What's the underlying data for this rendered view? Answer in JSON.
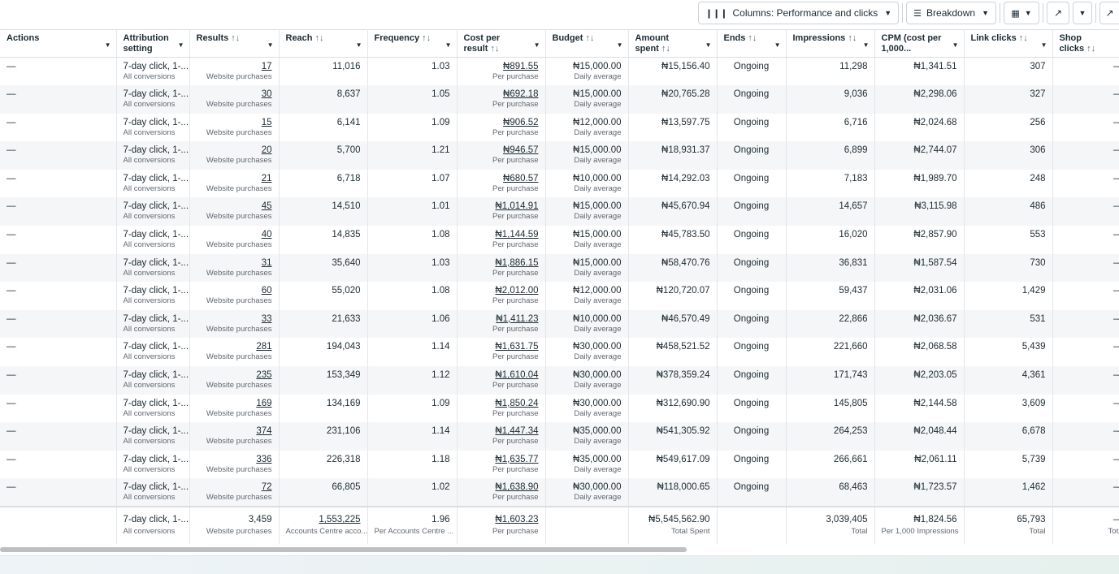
{
  "toolbar": {
    "columns_label": "Columns: Performance and clicks",
    "breakdown_label": "Breakdown"
  },
  "headers": [
    {
      "label": "Actions",
      "sort": false
    },
    {
      "label": "Attribution setting",
      "sort": false
    },
    {
      "label": "Results",
      "sort": true
    },
    {
      "label": "Reach",
      "sort": true
    },
    {
      "label": "Frequency",
      "sort": true
    },
    {
      "label": "Cost per result",
      "sort": true
    },
    {
      "label": "Budget",
      "sort": true
    },
    {
      "label": "Amount spent",
      "sort": true
    },
    {
      "label": "Ends",
      "sort": true
    },
    {
      "label": "Impressions",
      "sort": true
    },
    {
      "label": "CPM (cost per 1,000...",
      "sort": false
    },
    {
      "label": "Link clicks",
      "sort": true
    },
    {
      "label": "Shop clicks",
      "sort": true
    }
  ],
  "sort_glyph": "↑↓",
  "rows": [
    {
      "actions": "—",
      "attr": "7-day click, 1-...",
      "attr_sub": "All conversions",
      "results": "17",
      "results_sub": "Website purchases",
      "reach": "11,016",
      "freq": "1.03",
      "cpr": "₦891.55",
      "cpr_sub": "Per purchase",
      "budget": "₦15,000.00",
      "budget_sub": "Daily average",
      "spent": "₦15,156.40",
      "ends": "Ongoing",
      "impr": "11,298",
      "cpm": "₦1,341.51",
      "link": "307",
      "shop": "—"
    },
    {
      "actions": "—",
      "attr": "7-day click, 1-...",
      "attr_sub": "All conversions",
      "results": "30",
      "results_sub": "Website purchases",
      "reach": "8,637",
      "freq": "1.05",
      "cpr": "₦692.18",
      "cpr_sub": "Per purchase",
      "budget": "₦15,000.00",
      "budget_sub": "Daily average",
      "spent": "₦20,765.28",
      "ends": "Ongoing",
      "impr": "9,036",
      "cpm": "₦2,298.06",
      "link": "327",
      "shop": "—"
    },
    {
      "actions": "—",
      "attr": "7-day click, 1-...",
      "attr_sub": "All conversions",
      "results": "15",
      "results_sub": "Website purchases",
      "reach": "6,141",
      "freq": "1.09",
      "cpr": "₦906.52",
      "cpr_sub": "Per purchase",
      "budget": "₦12,000.00",
      "budget_sub": "Daily average",
      "spent": "₦13,597.75",
      "ends": "Ongoing",
      "impr": "6,716",
      "cpm": "₦2,024.68",
      "link": "256",
      "shop": "—"
    },
    {
      "actions": "—",
      "attr": "7-day click, 1-...",
      "attr_sub": "All conversions",
      "results": "20",
      "results_sub": "Website purchases",
      "reach": "5,700",
      "freq": "1.21",
      "cpr": "₦946.57",
      "cpr_sub": "Per purchase",
      "budget": "₦15,000.00",
      "budget_sub": "Daily average",
      "spent": "₦18,931.37",
      "ends": "Ongoing",
      "impr": "6,899",
      "cpm": "₦2,744.07",
      "link": "306",
      "shop": "—"
    },
    {
      "actions": "—",
      "attr": "7-day click, 1-...",
      "attr_sub": "All conversions",
      "results": "21",
      "results_sub": "Website purchases",
      "reach": "6,718",
      "freq": "1.07",
      "cpr": "₦680.57",
      "cpr_sub": "Per purchase",
      "budget": "₦10,000.00",
      "budget_sub": "Daily average",
      "spent": "₦14,292.03",
      "ends": "Ongoing",
      "impr": "7,183",
      "cpm": "₦1,989.70",
      "link": "248",
      "shop": "—"
    },
    {
      "actions": "—",
      "attr": "7-day click, 1-...",
      "attr_sub": "All conversions",
      "results": "45",
      "results_sub": "Website purchases",
      "reach": "14,510",
      "freq": "1.01",
      "cpr": "₦1,014.91",
      "cpr_sub": "Per purchase",
      "budget": "₦15,000.00",
      "budget_sub": "Daily average",
      "spent": "₦45,670.94",
      "ends": "Ongoing",
      "impr": "14,657",
      "cpm": "₦3,115.98",
      "link": "486",
      "shop": "—"
    },
    {
      "actions": "—",
      "attr": "7-day click, 1-...",
      "attr_sub": "All conversions",
      "results": "40",
      "results_sub": "Website purchases",
      "reach": "14,835",
      "freq": "1.08",
      "cpr": "₦1,144.59",
      "cpr_sub": "Per purchase",
      "budget": "₦15,000.00",
      "budget_sub": "Daily average",
      "spent": "₦45,783.50",
      "ends": "Ongoing",
      "impr": "16,020",
      "cpm": "₦2,857.90",
      "link": "553",
      "shop": "—"
    },
    {
      "actions": "—",
      "attr": "7-day click, 1-...",
      "attr_sub": "All conversions",
      "results": "31",
      "results_sub": "Website purchases",
      "reach": "35,640",
      "freq": "1.03",
      "cpr": "₦1,886.15",
      "cpr_sub": "Per purchase",
      "budget": "₦15,000.00",
      "budget_sub": "Daily average",
      "spent": "₦58,470.76",
      "ends": "Ongoing",
      "impr": "36,831",
      "cpm": "₦1,587.54",
      "link": "730",
      "shop": "—"
    },
    {
      "actions": "—",
      "attr": "7-day click, 1-...",
      "attr_sub": "All conversions",
      "results": "60",
      "results_sub": "Website purchases",
      "reach": "55,020",
      "freq": "1.08",
      "cpr": "₦2,012.00",
      "cpr_sub": "Per purchase",
      "budget": "₦12,000.00",
      "budget_sub": "Daily average",
      "spent": "₦120,720.07",
      "ends": "Ongoing",
      "impr": "59,437",
      "cpm": "₦2,031.06",
      "link": "1,429",
      "shop": "—"
    },
    {
      "actions": "—",
      "attr": "7-day click, 1-...",
      "attr_sub": "All conversions",
      "results": "33",
      "results_sub": "Website purchases",
      "reach": "21,633",
      "freq": "1.06",
      "cpr": "₦1,411.23",
      "cpr_sub": "Per purchase",
      "budget": "₦10,000.00",
      "budget_sub": "Daily average",
      "spent": "₦46,570.49",
      "ends": "Ongoing",
      "impr": "22,866",
      "cpm": "₦2,036.67",
      "link": "531",
      "shop": "—"
    },
    {
      "actions": "—",
      "attr": "7-day click, 1-...",
      "attr_sub": "All conversions",
      "results": "281",
      "results_sub": "Website purchases",
      "reach": "194,043",
      "freq": "1.14",
      "cpr": "₦1,631.75",
      "cpr_sub": "Per purchase",
      "budget": "₦30,000.00",
      "budget_sub": "Daily average",
      "spent": "₦458,521.52",
      "ends": "Ongoing",
      "impr": "221,660",
      "cpm": "₦2,068.58",
      "link": "5,439",
      "shop": "—"
    },
    {
      "actions": "—",
      "attr": "7-day click, 1-...",
      "attr_sub": "All conversions",
      "results": "235",
      "results_sub": "Website purchases",
      "reach": "153,349",
      "freq": "1.12",
      "cpr": "₦1,610.04",
      "cpr_sub": "Per purchase",
      "budget": "₦30,000.00",
      "budget_sub": "Daily average",
      "spent": "₦378,359.24",
      "ends": "Ongoing",
      "impr": "171,743",
      "cpm": "₦2,203.05",
      "link": "4,361",
      "shop": "—"
    },
    {
      "actions": "—",
      "attr": "7-day click, 1-...",
      "attr_sub": "All conversions",
      "results": "169",
      "results_sub": "Website purchases",
      "reach": "134,169",
      "freq": "1.09",
      "cpr": "₦1,850.24",
      "cpr_sub": "Per purchase",
      "budget": "₦30,000.00",
      "budget_sub": "Daily average",
      "spent": "₦312,690.90",
      "ends": "Ongoing",
      "impr": "145,805",
      "cpm": "₦2,144.58",
      "link": "3,609",
      "shop": "—"
    },
    {
      "actions": "—",
      "attr": "7-day click, 1-...",
      "attr_sub": "All conversions",
      "results": "374",
      "results_sub": "Website purchases",
      "reach": "231,106",
      "freq": "1.14",
      "cpr": "₦1,447.34",
      "cpr_sub": "Per purchase",
      "budget": "₦35,000.00",
      "budget_sub": "Daily average",
      "spent": "₦541,305.92",
      "ends": "Ongoing",
      "impr": "264,253",
      "cpm": "₦2,048.44",
      "link": "6,678",
      "shop": "—"
    },
    {
      "actions": "—",
      "attr": "7-day click, 1-...",
      "attr_sub": "All conversions",
      "results": "336",
      "results_sub": "Website purchases",
      "reach": "226,318",
      "freq": "1.18",
      "cpr": "₦1,635.77",
      "cpr_sub": "Per purchase",
      "budget": "₦35,000.00",
      "budget_sub": "Daily average",
      "spent": "₦549,617.09",
      "ends": "Ongoing",
      "impr": "266,661",
      "cpm": "₦2,061.11",
      "link": "5,739",
      "shop": "—"
    },
    {
      "actions": "—",
      "attr": "7-day click, 1-...",
      "attr_sub": "All conversions",
      "results": "72",
      "results_sub": "Website purchases",
      "reach": "66,805",
      "freq": "1.02",
      "cpr": "₦1,638.90",
      "cpr_sub": "Per purchase",
      "budget": "₦30,000.00",
      "budget_sub": "Daily average",
      "spent": "₦118,000.65",
      "ends": "Ongoing",
      "impr": "68,463",
      "cpm": "₦1,723.57",
      "link": "1,462",
      "shop": "—"
    }
  ],
  "totals": {
    "attr": "7-day click, 1-...",
    "attr_sub": "All conversions",
    "results": "3,459",
    "results_sub": "Website purchases",
    "reach": "1,553,225",
    "reach_sub": "Accounts Centre acco...",
    "freq": "1.96",
    "freq_sub": "Per Accounts Centre ...",
    "cpr": "₦1,603.23",
    "cpr_sub": "Per purchase",
    "spent": "₦5,545,562.90",
    "spent_sub": "Total Spent",
    "impr": "3,039,405",
    "impr_sub": "Total",
    "cpm": "₦1,824.56",
    "cpm_sub": "Per 1,000 Impressions",
    "link": "65,793",
    "link_sub": "Total",
    "shop": "—",
    "shop_sub": "Tota"
  }
}
